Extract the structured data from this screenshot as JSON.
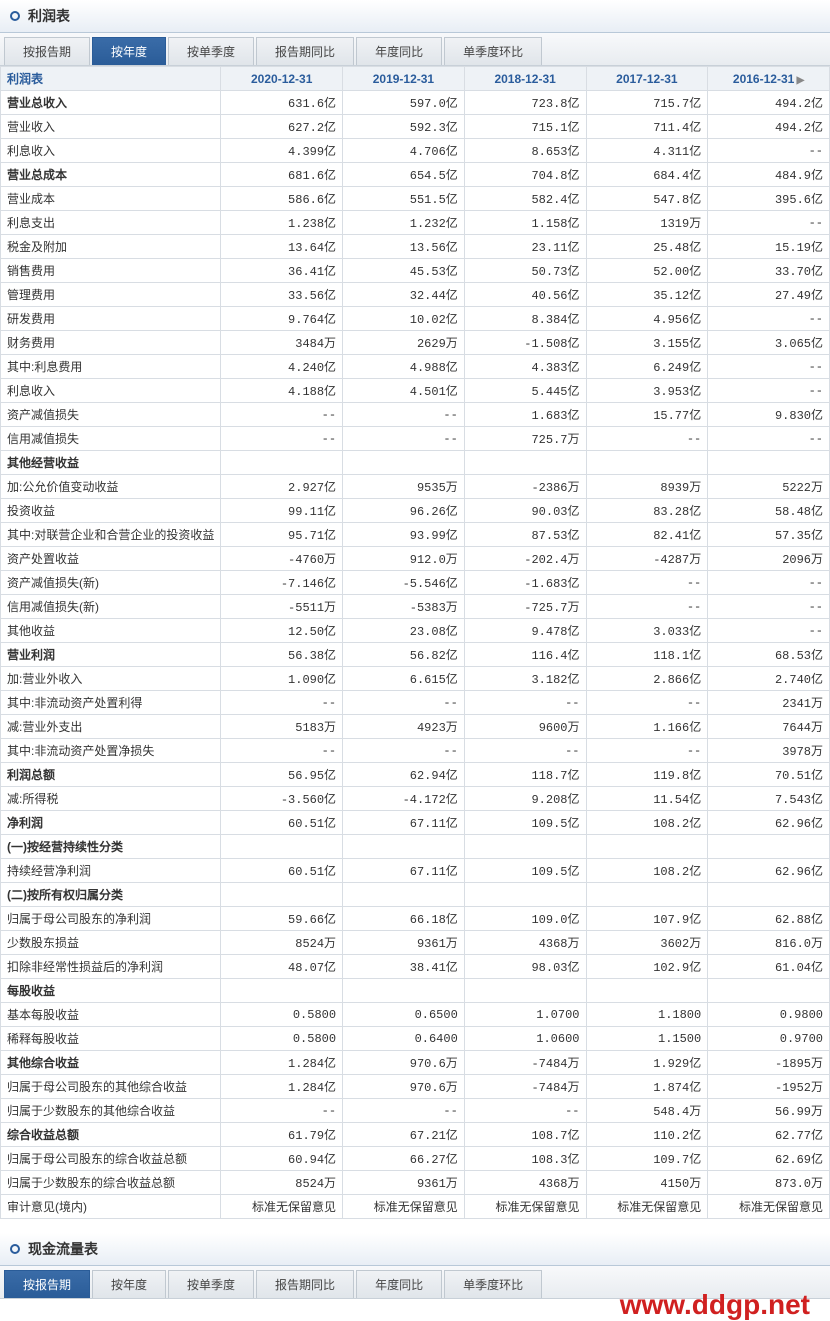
{
  "income_section": {
    "header_title": "利润表",
    "tabs": [
      {
        "label": "按报告期",
        "active": false
      },
      {
        "label": "按年度",
        "active": true
      },
      {
        "label": "按单季度",
        "active": false
      },
      {
        "label": "报告期同比",
        "active": false
      },
      {
        "label": "年度同比",
        "active": false
      },
      {
        "label": "单季度环比",
        "active": false
      }
    ],
    "table": {
      "first_col_header": "利润表",
      "year_columns": [
        "2020-12-31",
        "2019-12-31",
        "2018-12-31",
        "2017-12-31",
        "2016-12-31"
      ],
      "rows": [
        {
          "label": "营业总收入",
          "indent": 0,
          "bold": true,
          "values": [
            "631.6亿",
            "597.0亿",
            "723.8亿",
            "715.7亿",
            "494.2亿"
          ]
        },
        {
          "label": "营业收入",
          "indent": 1,
          "values": [
            "627.2亿",
            "592.3亿",
            "715.1亿",
            "711.4亿",
            "494.2亿"
          ]
        },
        {
          "label": "利息收入",
          "indent": 1,
          "values": [
            "4.399亿",
            "4.706亿",
            "8.653亿",
            "4.311亿",
            "--"
          ]
        },
        {
          "label": "营业总成本",
          "indent": 0,
          "bold": true,
          "values": [
            "681.6亿",
            "654.5亿",
            "704.8亿",
            "684.4亿",
            "484.9亿"
          ]
        },
        {
          "label": "营业成本",
          "indent": 1,
          "values": [
            "586.6亿",
            "551.5亿",
            "582.4亿",
            "547.8亿",
            "395.6亿"
          ]
        },
        {
          "label": "利息支出",
          "indent": 1,
          "values": [
            "1.238亿",
            "1.232亿",
            "1.158亿",
            "1319万",
            "--"
          ]
        },
        {
          "label": "税金及附加",
          "indent": 1,
          "values": [
            "13.64亿",
            "13.56亿",
            "23.11亿",
            "25.48亿",
            "15.19亿"
          ]
        },
        {
          "label": "销售费用",
          "indent": 1,
          "values": [
            "36.41亿",
            "45.53亿",
            "50.73亿",
            "52.00亿",
            "33.70亿"
          ]
        },
        {
          "label": "管理费用",
          "indent": 1,
          "values": [
            "33.56亿",
            "32.44亿",
            "40.56亿",
            "35.12亿",
            "27.49亿"
          ]
        },
        {
          "label": "研发费用",
          "indent": 1,
          "values": [
            "9.764亿",
            "10.02亿",
            "8.384亿",
            "4.956亿",
            "--"
          ]
        },
        {
          "label": "财务费用",
          "indent": 1,
          "values": [
            "3484万",
            "2629万",
            "-1.508亿",
            "3.155亿",
            "3.065亿"
          ]
        },
        {
          "label": "其中:利息费用",
          "indent": 1,
          "values": [
            "4.240亿",
            "4.988亿",
            "4.383亿",
            "6.249亿",
            "--"
          ]
        },
        {
          "label": "利息收入",
          "indent": 2,
          "values": [
            "4.188亿",
            "4.501亿",
            "5.445亿",
            "3.953亿",
            "--"
          ]
        },
        {
          "label": "资产减值损失",
          "indent": 1,
          "values": [
            "--",
            "--",
            "1.683亿",
            "15.77亿",
            "9.830亿"
          ]
        },
        {
          "label": "信用减值损失",
          "indent": 1,
          "values": [
            "--",
            "--",
            "725.7万",
            "--",
            "--"
          ]
        },
        {
          "label": "其他经营收益",
          "indent": 0,
          "bold": true,
          "values": [
            "",
            "",
            "",
            "",
            ""
          ]
        },
        {
          "label": "加:公允价值变动收益",
          "indent": 1,
          "values": [
            "2.927亿",
            "9535万",
            "-2386万",
            "8939万",
            "5222万"
          ]
        },
        {
          "label": "投资收益",
          "indent": 2,
          "values": [
            "99.11亿",
            "96.26亿",
            "90.03亿",
            "83.28亿",
            "58.48亿"
          ]
        },
        {
          "label": "其中:对联营企业和合营企业的投资收益",
          "indent": 1,
          "values": [
            "95.71亿",
            "93.99亿",
            "87.53亿",
            "82.41亿",
            "57.35亿"
          ]
        },
        {
          "label": "资产处置收益",
          "indent": 1,
          "values": [
            "-4760万",
            "912.0万",
            "-202.4万",
            "-4287万",
            "2096万"
          ]
        },
        {
          "label": "资产减值损失(新)",
          "indent": 1,
          "values": [
            "-7.146亿",
            "-5.546亿",
            "-1.683亿",
            "--",
            "--"
          ]
        },
        {
          "label": "信用减值损失(新)",
          "indent": 1,
          "values": [
            "-5511万",
            "-5383万",
            "-725.7万",
            "--",
            "--"
          ]
        },
        {
          "label": "其他收益",
          "indent": 1,
          "values": [
            "12.50亿",
            "23.08亿",
            "9.478亿",
            "3.033亿",
            "--"
          ]
        },
        {
          "label": "营业利润",
          "indent": 0,
          "bold": true,
          "values": [
            "56.38亿",
            "56.82亿",
            "116.4亿",
            "118.1亿",
            "68.53亿"
          ]
        },
        {
          "label": "加:营业外收入",
          "indent": 1,
          "values": [
            "1.090亿",
            "6.615亿",
            "3.182亿",
            "2.866亿",
            "2.740亿"
          ]
        },
        {
          "label": "其中:非流动资产处置利得",
          "indent": 1,
          "values": [
            "--",
            "--",
            "--",
            "--",
            "2341万"
          ]
        },
        {
          "label": "减:营业外支出",
          "indent": 1,
          "values": [
            "5183万",
            "4923万",
            "9600万",
            "1.166亿",
            "7644万"
          ]
        },
        {
          "label": "其中:非流动资产处置净损失",
          "indent": 1,
          "values": [
            "--",
            "--",
            "--",
            "--",
            "3978万"
          ]
        },
        {
          "label": "利润总额",
          "indent": 0,
          "bold": true,
          "values": [
            "56.95亿",
            "62.94亿",
            "118.7亿",
            "119.8亿",
            "70.51亿"
          ]
        },
        {
          "label": "减:所得税",
          "indent": 1,
          "values": [
            "-3.560亿",
            "-4.172亿",
            "9.208亿",
            "11.54亿",
            "7.543亿"
          ]
        },
        {
          "label": "净利润",
          "indent": 0,
          "bold": true,
          "values": [
            "60.51亿",
            "67.11亿",
            "109.5亿",
            "108.2亿",
            "62.96亿"
          ]
        },
        {
          "label": "(一)按经营持续性分类",
          "indent": 0,
          "bold": true,
          "values": [
            "",
            "",
            "",
            "",
            ""
          ]
        },
        {
          "label": "持续经营净利润",
          "indent": 1,
          "values": [
            "60.51亿",
            "67.11亿",
            "109.5亿",
            "108.2亿",
            "62.96亿"
          ]
        },
        {
          "label": "(二)按所有权归属分类",
          "indent": 0,
          "bold": true,
          "values": [
            "",
            "",
            "",
            "",
            ""
          ]
        },
        {
          "label": "归属于母公司股东的净利润",
          "indent": 1,
          "values": [
            "59.66亿",
            "66.18亿",
            "109.0亿",
            "107.9亿",
            "62.88亿"
          ]
        },
        {
          "label": "少数股东损益",
          "indent": 1,
          "values": [
            "8524万",
            "9361万",
            "4368万",
            "3602万",
            "816.0万"
          ]
        },
        {
          "label": "扣除非经常性损益后的净利润",
          "indent": 1,
          "values": [
            "48.07亿",
            "38.41亿",
            "98.03亿",
            "102.9亿",
            "61.04亿"
          ]
        },
        {
          "label": "每股收益",
          "indent": 0,
          "bold": true,
          "values": [
            "",
            "",
            "",
            "",
            ""
          ]
        },
        {
          "label": "基本每股收益",
          "indent": 1,
          "values": [
            "0.5800",
            "0.6500",
            "1.0700",
            "1.1800",
            "0.9800"
          ]
        },
        {
          "label": "稀释每股收益",
          "indent": 1,
          "values": [
            "0.5800",
            "0.6400",
            "1.0600",
            "1.1500",
            "0.9700"
          ]
        },
        {
          "label": "其他综合收益",
          "indent": 0,
          "bold": true,
          "values": [
            "1.284亿",
            "970.6万",
            "-7484万",
            "1.929亿",
            "-1895万"
          ]
        },
        {
          "label": "归属于母公司股东的其他综合收益",
          "indent": 1,
          "values": [
            "1.284亿",
            "970.6万",
            "-7484万",
            "1.874亿",
            "-1952万"
          ]
        },
        {
          "label": "归属于少数股东的其他综合收益",
          "indent": 1,
          "values": [
            "--",
            "--",
            "--",
            "548.4万",
            "56.99万"
          ]
        },
        {
          "label": "综合收益总额",
          "indent": 0,
          "bold": true,
          "values": [
            "61.79亿",
            "67.21亿",
            "108.7亿",
            "110.2亿",
            "62.77亿"
          ]
        },
        {
          "label": "归属于母公司股东的综合收益总额",
          "indent": 1,
          "values": [
            "60.94亿",
            "66.27亿",
            "108.3亿",
            "109.7亿",
            "62.69亿"
          ]
        },
        {
          "label": "归属于少数股东的综合收益总额",
          "indent": 1,
          "values": [
            "8524万",
            "9361万",
            "4368万",
            "4150万",
            "873.0万"
          ]
        },
        {
          "label": "审计意见(境内)",
          "indent": 1,
          "values": [
            "标准无保留意见",
            "标准无保留意见",
            "标准无保留意见",
            "标准无保留意见",
            "标准无保留意见"
          ]
        }
      ]
    }
  },
  "cashflow_section": {
    "header_title": "现金流量表",
    "tabs": [
      {
        "label": "按报告期",
        "active": true
      },
      {
        "label": "按年度",
        "active": false
      },
      {
        "label": "按单季度",
        "active": false
      },
      {
        "label": "报告期同比",
        "active": false
      },
      {
        "label": "年度同比",
        "active": false
      },
      {
        "label": "单季度环比",
        "active": false
      }
    ]
  },
  "watermark": "www.ddgp.net",
  "colors": {
    "header_text": "#2a5c9c",
    "active_tab_bg": "#2a5c98",
    "border": "#d8dde3",
    "watermark": "#d02020"
  }
}
